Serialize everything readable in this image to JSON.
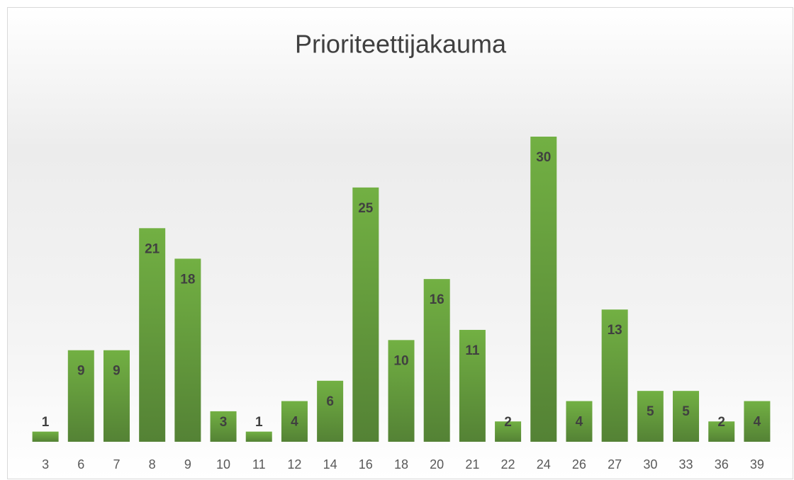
{
  "chart_data": {
    "type": "bar",
    "title": "Prioriteettijakauma",
    "categories": [
      "3",
      "6",
      "7",
      "8",
      "9",
      "10",
      "11",
      "12",
      "14",
      "16",
      "18",
      "20",
      "21",
      "22",
      "24",
      "26",
      "27",
      "30",
      "33",
      "36",
      "39"
    ],
    "values": [
      1,
      9,
      9,
      21,
      18,
      3,
      1,
      4,
      6,
      25,
      10,
      16,
      11,
      2,
      30,
      4,
      13,
      5,
      5,
      2,
      4
    ],
    "color": "#6aa842"
  }
}
